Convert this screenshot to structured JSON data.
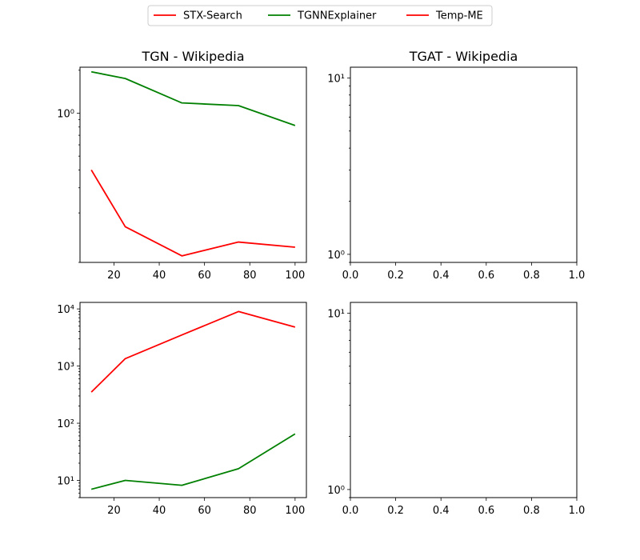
{
  "legend": [
    {
      "name": "STX-Search",
      "color": "#ff0000"
    },
    {
      "name": "TGNNExplainer",
      "color": "#008000"
    },
    {
      "name": "Temp-ME",
      "color": "#ff0000"
    }
  ],
  "chart_data": [
    {
      "type": "line",
      "title": "TGN - Wikipedia",
      "x": [
        10,
        25,
        50,
        75,
        100
      ],
      "xlim": [
        5,
        105
      ],
      "xticks": [
        20,
        40,
        60,
        80,
        100
      ],
      "xtick_labels": [
        "20",
        "40",
        "60",
        "80",
        "100"
      ],
      "yscale": "log",
      "ylim": [
        0.09,
        2.1
      ],
      "yticks": [
        1
      ],
      "ytick_labels": [
        "10⁰"
      ],
      "series": [
        {
          "name": "TGNNExplainer",
          "color": "#008000",
          "values": [
            1.95,
            1.75,
            1.18,
            1.13,
            0.82
          ]
        },
        {
          "name": "Temp-ME",
          "color": "#ff0000",
          "values": [
            0.4,
            0.16,
            0.1,
            0.125,
            0.115
          ]
        }
      ]
    },
    {
      "type": "line",
      "title": "TGAT - Wikipedia",
      "x": [],
      "xlim": [
        0,
        1
      ],
      "xticks": [
        0,
        0.2,
        0.4,
        0.6,
        0.8,
        1.0
      ],
      "xtick_labels": [
        "0.0",
        "0.2",
        "0.4",
        "0.6",
        "0.8",
        "1.0"
      ],
      "yscale": "log",
      "ylim": [
        0.9,
        11.5
      ],
      "yticks": [
        1,
        10
      ],
      "ytick_labels": [
        "10⁰",
        "10¹"
      ],
      "series": []
    },
    {
      "type": "line",
      "title": "",
      "x": [
        10,
        25,
        50,
        75,
        100
      ],
      "xlim": [
        5,
        105
      ],
      "xticks": [
        20,
        40,
        60,
        80,
        100
      ],
      "xtick_labels": [
        "20",
        "40",
        "60",
        "80",
        "100"
      ],
      "yscale": "log",
      "ylim": [
        5,
        13000
      ],
      "yticks": [
        10,
        100,
        1000,
        10000
      ],
      "ytick_labels": [
        "10¹",
        "10²",
        "10³",
        "10⁴"
      ],
      "series": [
        {
          "name": "Temp-ME",
          "color": "#ff0000",
          "values": [
            350,
            1350,
            3500,
            9000,
            4800
          ]
        },
        {
          "name": "TGNNExplainer",
          "color": "#008000",
          "values": [
            7,
            10,
            8.2,
            16,
            65
          ]
        }
      ]
    },
    {
      "type": "line",
      "title": "",
      "x": [],
      "xlim": [
        0,
        1
      ],
      "xticks": [
        0,
        0.2,
        0.4,
        0.6,
        0.8,
        1.0
      ],
      "xtick_labels": [
        "0.0",
        "0.2",
        "0.4",
        "0.6",
        "0.8",
        "1.0"
      ],
      "yscale": "log",
      "ylim": [
        0.9,
        11.5
      ],
      "yticks": [
        1,
        10
      ],
      "ytick_labels": [
        "10⁰",
        "10¹"
      ],
      "series": []
    }
  ]
}
